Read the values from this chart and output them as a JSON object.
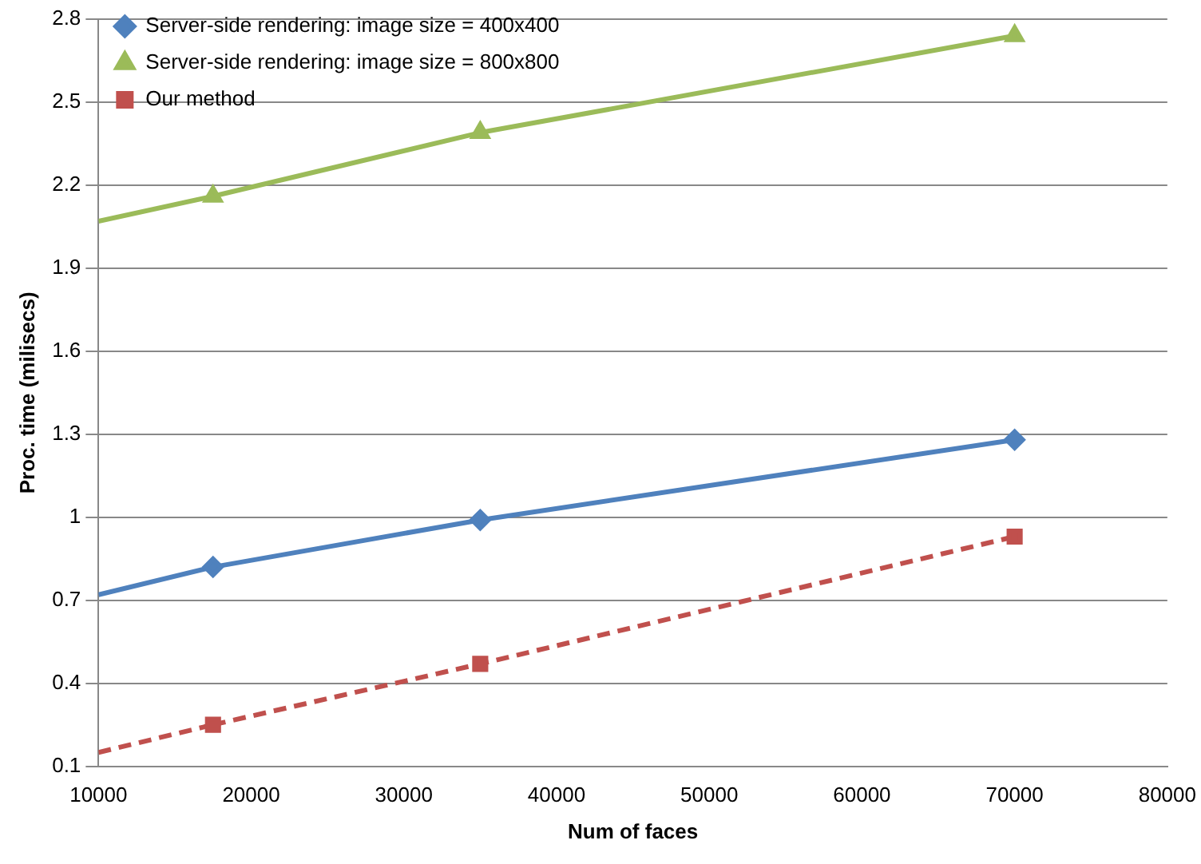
{
  "chart_data": {
    "type": "line",
    "xlabel": "Num of faces",
    "ylabel": "Proc. time (milisecs)",
    "xlim": [
      10000,
      80000
    ],
    "xticks": [
      10000,
      20000,
      30000,
      40000,
      50000,
      60000,
      70000,
      80000
    ],
    "ylim": [
      0.1,
      2.8
    ],
    "yticks": [
      0.1,
      0.4,
      0.7,
      1,
      1.3,
      1.6,
      1.9,
      2.2,
      2.5,
      2.8
    ],
    "grid": "y",
    "legend": "top left",
    "series": [
      {
        "name": "Server-side rendering: image size = 400x400",
        "color": "#4f81bd",
        "marker": "diamond",
        "line_style": "solid",
        "x": [
          17500,
          35000,
          70000
        ],
        "values": [
          0.82,
          0.99,
          1.28
        ]
      },
      {
        "name": "Server-side rendering: image size = 800x800",
        "color": "#9bbb59",
        "marker": "triangle",
        "line_style": "solid",
        "x": [
          17500,
          35000,
          70000
        ],
        "values": [
          2.16,
          2.39,
          2.74
        ]
      },
      {
        "name": "Our method",
        "color": "#c0504d",
        "marker": "square",
        "line_style": "dashed",
        "x": [
          17500,
          35000,
          70000
        ],
        "values": [
          0.25,
          0.47,
          0.93
        ]
      },
      {
        "color": "#4f81bd",
        "marker": "none",
        "line_style": "solid",
        "x": [
          10000,
          17500
        ],
        "values": [
          0.72,
          0.82
        ]
      },
      {
        "color": "#9bbb59",
        "marker": "none",
        "line_style": "solid",
        "x": [
          10000,
          17500
        ],
        "values": [
          2.07,
          2.16
        ]
      },
      {
        "color": "#c0504d",
        "marker": "none",
        "line_style": "dashed",
        "x": [
          10000,
          17500
        ],
        "values": [
          0.15,
          0.25
        ]
      }
    ]
  }
}
